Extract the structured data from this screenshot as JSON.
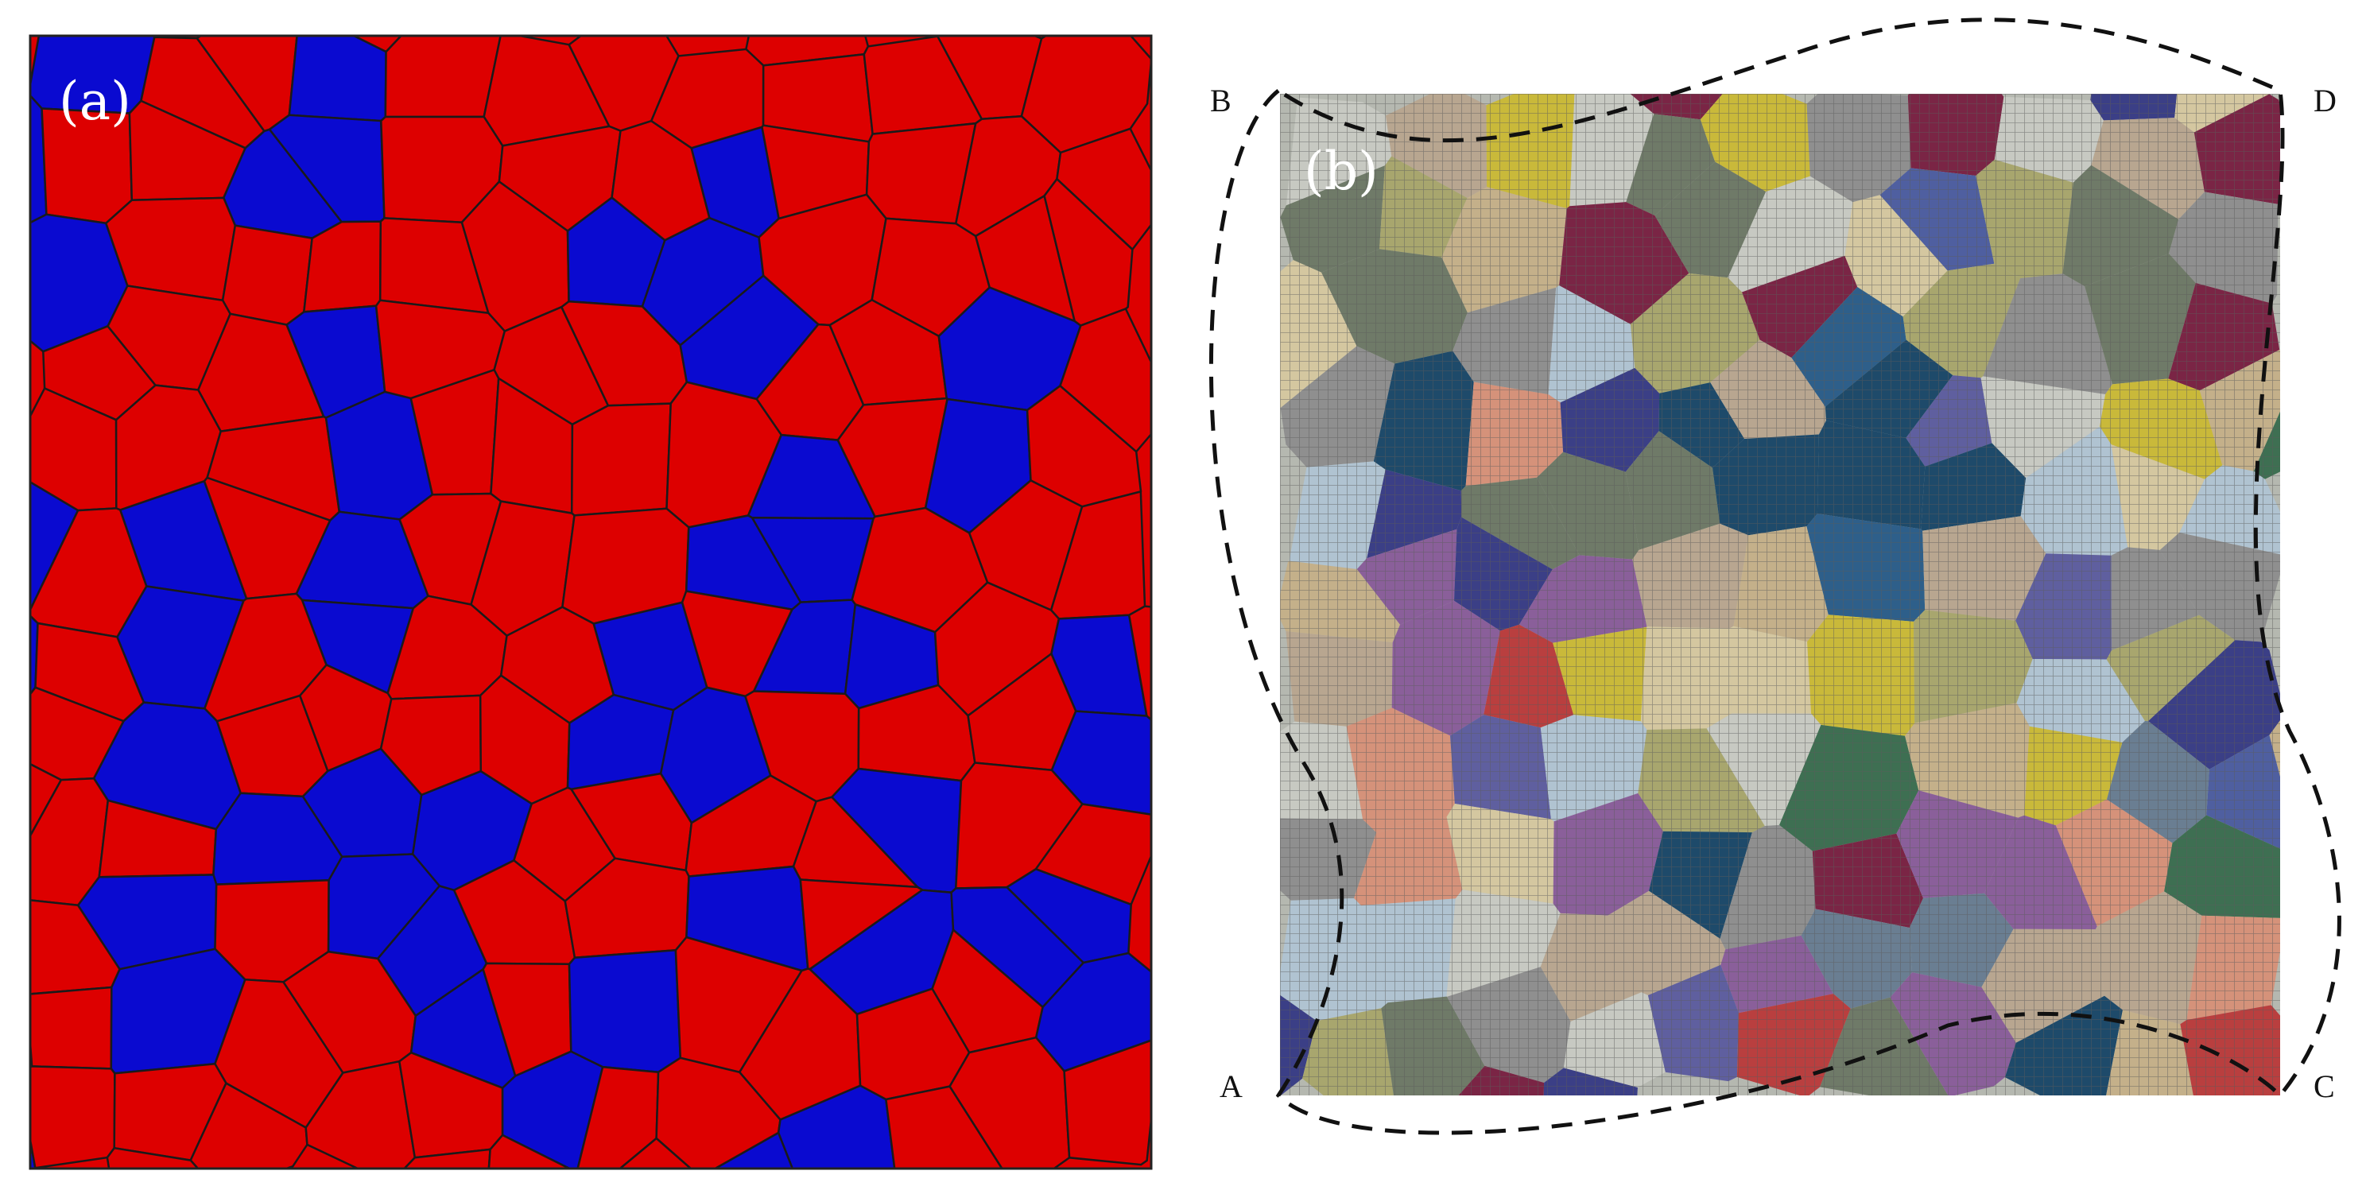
{
  "panel_a": {
    "label": "(a)",
    "colors": {
      "phase_1": "#dd0000",
      "phase_2": "#0a0ad0",
      "boundary": "#1a1a1a",
      "frame": "#222222"
    }
  },
  "panel_b": {
    "label": "(b)",
    "corners": {
      "top_left": "B",
      "top_right": "D",
      "bottom_left": "A",
      "bottom_right": "C"
    },
    "colors": {
      "mesh_line": "#9a9a9a",
      "deformed_outline": "#111111",
      "grain_palette": [
        "#2e5f8a",
        "#b93f3f",
        "#3e6f52",
        "#5f5f9f",
        "#c9b93a",
        "#d5927a",
        "#8f8f8f",
        "#7a2545",
        "#c7c9c2",
        "#a8a66e",
        "#4f5fa0",
        "#6a7e92",
        "#b8a690",
        "#1e4a6a",
        "#8a5f9a",
        "#b0c3d1",
        "#c4b08a",
        "#6f7a68",
        "#d4c7a0",
        "#3b3f86"
      ]
    }
  }
}
